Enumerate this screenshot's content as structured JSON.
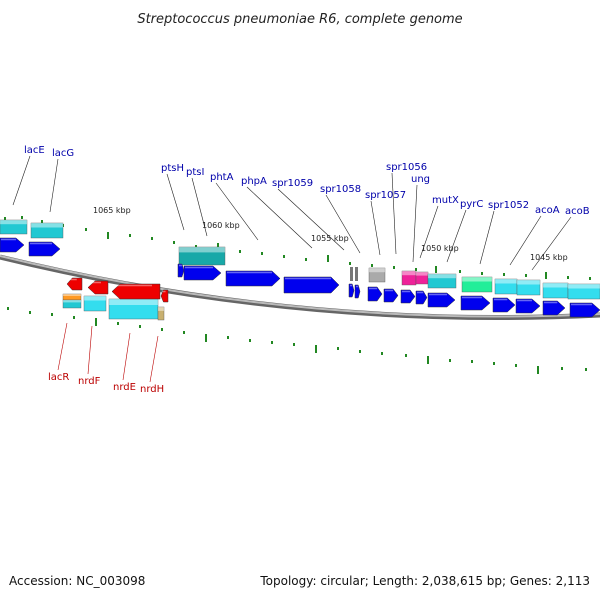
{
  "title": "Streptococcus pneumoniae R6, complete genome",
  "footer": {
    "accession": "Accession: NC_003098",
    "summary": "Topology: circular; Length: 2,038,615 bp; Genes: 2,113"
  },
  "colors": {
    "backbone": "#888888",
    "forward_cds": "#0000ee",
    "reverse_cds": "#ee0000",
    "cog_cyan": "#22c8d2",
    "cog_teal": "#18a8a8",
    "cog_aqua": "#33ddee",
    "cog_green": "#22ee99",
    "cog_magenta": "#ee2299",
    "cog_gray": "#aaaaaa",
    "cog_orange": "#ff9922",
    "cog_tan": "#c8b070",
    "forward_label": "#0000aa",
    "reverse_label": "#bb0000",
    "tick": "#228822"
  },
  "scale_labels": [
    "1065 kbp",
    "1060 kbp",
    "1055 kbp",
    "1050 kbp",
    "1045 kbp"
  ],
  "forward_gene_labels": [
    "lacE",
    "lacG",
    "ptsH",
    "ptsI",
    "phtA",
    "phpA",
    "spr1059",
    "spr1058",
    "spr1057",
    "spr1056",
    "ung",
    "mutX",
    "pyrC",
    "spr1052",
    "acoA",
    "acoB"
  ],
  "reverse_gene_labels": [
    "lacR",
    "nrdF",
    "nrdE",
    "nrdH"
  ]
}
